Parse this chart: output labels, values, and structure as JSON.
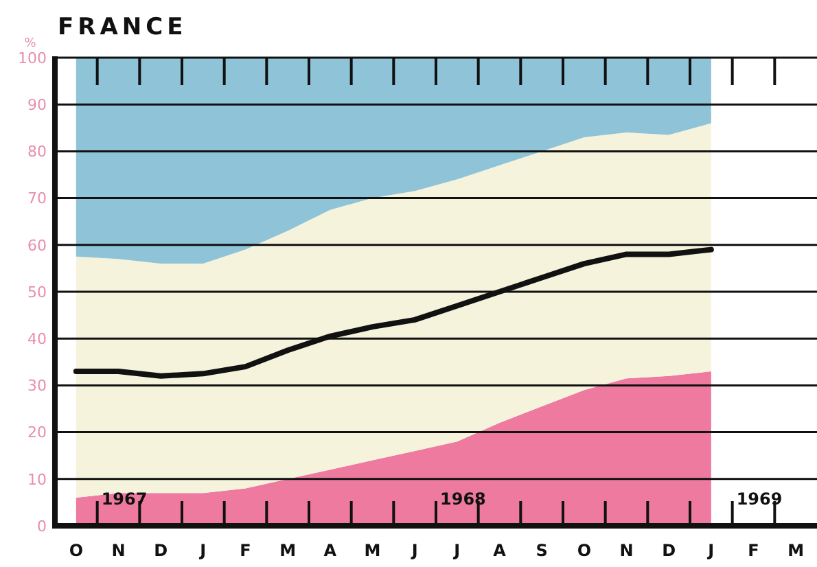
{
  "chart_data": {
    "type": "area",
    "title": "FRANCE",
    "ylabel": "%",
    "stacked": true,
    "categories": [
      "O",
      "N",
      "D",
      "J",
      "F",
      "M",
      "A",
      "M",
      "J",
      "J",
      "A",
      "S",
      "O",
      "N",
      "D",
      "J",
      "F",
      "M"
    ],
    "series": [
      {
        "color": "#ee7aa0",
        "values": [
          6,
          7,
          7,
          7,
          8,
          10,
          12,
          14,
          16,
          18,
          22,
          25.5,
          29,
          31.5,
          32,
          33,
          null,
          null
        ]
      },
      {
        "color": "#f5f3dc",
        "values": [
          51.5,
          50,
          49,
          49,
          51,
          53,
          55.5,
          56,
          55.5,
          56,
          55,
          54.5,
          54,
          52.5,
          51.5,
          53,
          null,
          null
        ]
      },
      {
        "color": "#8ec3d8",
        "values": [
          42.5,
          43,
          44,
          44,
          41,
          37,
          32.5,
          30,
          28.5,
          26,
          23,
          20,
          17,
          16,
          16.5,
          14,
          null,
          null
        ]
      },
      {
        "type": "line",
        "color": "#111111",
        "values": [
          33,
          33,
          32,
          32.5,
          34,
          37.5,
          40.5,
          42.5,
          44,
          47,
          50,
          53,
          56,
          58,
          58,
          59,
          null,
          null
        ]
      }
    ],
    "ylim": [
      0,
      100
    ],
    "yticks": [
      0,
      10,
      20,
      30,
      40,
      50,
      60,
      70,
      80,
      90,
      100
    ],
    "grid": "y",
    "annotations": [
      "1967",
      "1968",
      "1969"
    ]
  }
}
